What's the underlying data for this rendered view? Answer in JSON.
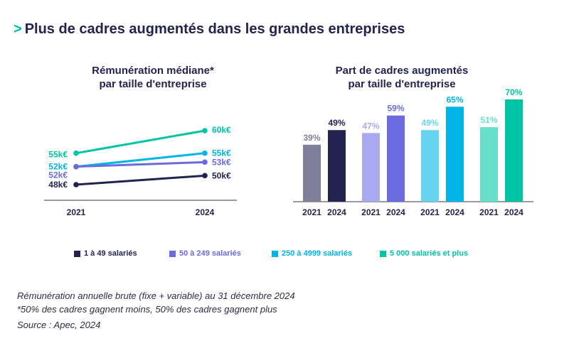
{
  "title": {
    "arrow": ">",
    "text": "Plus de cadres augmentés dans les grandes entreprises"
  },
  "colors": {
    "small": "#23234f",
    "medium": "#6b6be0",
    "large": "#00b4e6",
    "xlarge": "#00c4a3",
    "small_light": "#7f7f9a",
    "medium_light": "#a9a9f0",
    "large_light": "#66d3f0",
    "xlarge_light": "#66e0c8"
  },
  "legend": [
    {
      "label": "1 à 49 salariés",
      "color_key": "small"
    },
    {
      "label": "50 à 249 salariés",
      "color_key": "medium"
    },
    {
      "label": "250 à 4999 salariés",
      "color_key": "large"
    },
    {
      "label": "5 000 salariés et plus",
      "color_key": "xlarge"
    }
  ],
  "chart_data": [
    {
      "type": "line",
      "title_line1": "Rémunération médiane*",
      "title_line2": "par taille d'entreprise",
      "x": [
        "2021",
        "2024"
      ],
      "ylim": [
        45,
        62
      ],
      "series": [
        {
          "name": "5 000 salariés et plus",
          "color_key": "xlarge",
          "values": [
            55,
            60
          ],
          "labels": [
            "55k€",
            "60k€"
          ]
        },
        {
          "name": "250 à 4999 salariés",
          "color_key": "large",
          "values": [
            52,
            55
          ],
          "labels": [
            "52k€",
            "55k€"
          ]
        },
        {
          "name": "50 à 249 salariés",
          "color_key": "medium",
          "values": [
            52,
            53
          ],
          "labels": [
            "52k€",
            "53k€"
          ]
        },
        {
          "name": "1 à 49 salariés",
          "color_key": "small",
          "values": [
            48,
            50
          ],
          "labels": [
            "48k€",
            "50k€"
          ]
        }
      ]
    },
    {
      "type": "bar",
      "title_line1": "Part de cadres augmentés",
      "title_line2": "par taille d'entreprise",
      "unit": "%",
      "ylim": [
        0,
        70
      ],
      "groups": [
        {
          "name": "1 à 49 salariés",
          "bars": [
            {
              "year": "2021",
              "value": 39,
              "color_key": "small_light"
            },
            {
              "year": "2024",
              "value": 49,
              "color_key": "small"
            }
          ]
        },
        {
          "name": "50 à 249 salariés",
          "bars": [
            {
              "year": "2021",
              "value": 47,
              "color_key": "medium_light"
            },
            {
              "year": "2024",
              "value": 59,
              "color_key": "medium"
            }
          ]
        },
        {
          "name": "250 à 4999 salariés",
          "bars": [
            {
              "year": "2021",
              "value": 49,
              "color_key": "large_light"
            },
            {
              "year": "2024",
              "value": 65,
              "color_key": "large"
            }
          ]
        },
        {
          "name": "5 000 salariés et plus",
          "bars": [
            {
              "year": "2021",
              "value": 51,
              "color_key": "xlarge_light"
            },
            {
              "year": "2024",
              "value": 70,
              "color_key": "xlarge"
            }
          ]
        }
      ]
    }
  ],
  "notes": {
    "line1": "Rémunération annuelle brute (fixe + variable) au 31 décembre 2024",
    "line2": "*50% des cadres gagnent moins, 50% des cadres gagnent plus",
    "source": "Source : Apec, 2024"
  }
}
